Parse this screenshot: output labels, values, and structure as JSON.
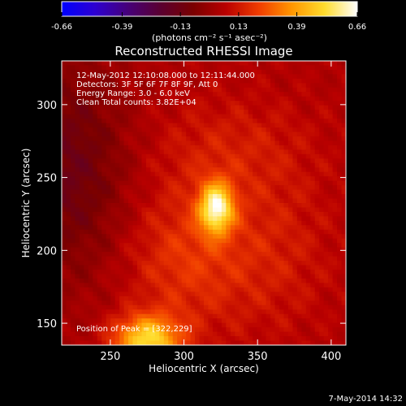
{
  "colorbar": {
    "tick_labels": [
      "-0.66",
      "-0.39",
      "-0.13",
      "0.13",
      "0.39",
      "0.66"
    ],
    "tick_values": [
      -0.66,
      -0.39,
      -0.13,
      0.13,
      0.39,
      0.66
    ],
    "range": [
      -0.66,
      0.66
    ],
    "units_label": "(photons cm⁻² s⁻¹ asec⁻²)",
    "colormap": [
      "#0000ff",
      "#2d00d2",
      "#46007a",
      "#5a0031",
      "#7a0000",
      "#b90000",
      "#f03c00",
      "#ff9600",
      "#ffdc2d",
      "#ffffff"
    ]
  },
  "footer": {
    "date": "7-May-2014 14:32"
  },
  "chart_data": {
    "type": "heatmap",
    "title": "Reconstructed RHESSI Image",
    "xlabel": "Heliocentric X (arcsec)",
    "ylabel": "Heliocentric Y (arcsec)",
    "xlim": [
      217,
      410
    ],
    "ylim": [
      135,
      330
    ],
    "x_ticks": [
      250,
      300,
      350,
      400
    ],
    "y_ticks": [
      150,
      200,
      250,
      300
    ],
    "x_tick_labels": [
      "250",
      "300",
      "350",
      "400"
    ],
    "y_tick_labels": [
      "150",
      "200",
      "250",
      "300"
    ],
    "info_lines": [
      "12-May-2012 12:10:08.000 to 12:11:44.000",
      "Detectors: 3F 5F 6F 7F 8F 9F, Att 0",
      "Energy Range: 3.0 - 6.0 keV",
      "Clean     Total counts: 3.82E+04"
    ],
    "peak_label": "Position of Peak = [322,229]",
    "peak": [
      322,
      229
    ],
    "sources": [
      {
        "x": 322,
        "y": 229,
        "sx": 8,
        "sy": 12,
        "amp": 0.52
      },
      {
        "x": 275,
        "y": 138,
        "sx": 16,
        "sy": 12,
        "amp": 0.45
      },
      {
        "x": 300,
        "y": 195,
        "sx": 30,
        "sy": 35,
        "amp": 0.14
      },
      {
        "x": 330,
        "y": 270,
        "sx": 40,
        "sy": 25,
        "amp": 0.08
      },
      {
        "x": 360,
        "y": 200,
        "sx": 30,
        "sy": 40,
        "amp": 0.08
      }
    ],
    "background": 0.05,
    "dark_region": {
      "x": 222,
      "y": 255,
      "sx": 30,
      "sy": 55,
      "amp": -0.18
    },
    "grid": false
  }
}
